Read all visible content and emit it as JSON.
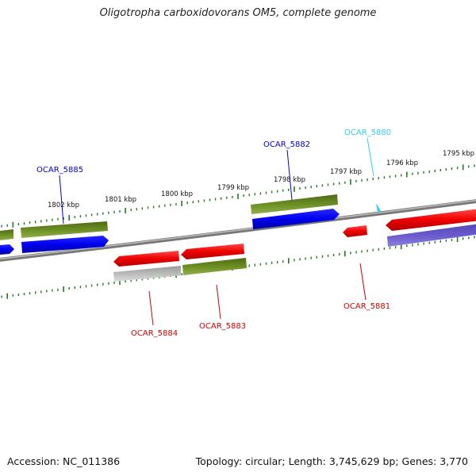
{
  "title": "Oligotropha carboxidovorans OM5, complete genome",
  "footer": {
    "accession": "Accession: NC_011386",
    "summary": "Topology: circular; Length: 3,745,629 bp; Genes: 3,770"
  },
  "ruler_labels": [
    "1802 kbp",
    "1801 kbp",
    "1800 kbp",
    "1799 kbp",
    "1798 kbp",
    "1797 kbp",
    "1796 kbp",
    "1795 kbp"
  ],
  "gene_labels": [
    "OCAR_5885",
    "OCAR_5882",
    "OCAR_5880",
    "OCAR_5884",
    "OCAR_5883",
    "OCAR_5881"
  ],
  "colors": {
    "backbone": "#808080",
    "cds_red": "#e60000",
    "gene_green": "#6b8e23",
    "cds_blue": "#0000ee",
    "rna_purple": "#6a5acd",
    "pseudo_gray": "#bbbbbb",
    "tick_green": "#1f7a1f",
    "label_blue": "#0000cc",
    "label_cyan": "#33ccee",
    "label_red": "#cc0000"
  }
}
